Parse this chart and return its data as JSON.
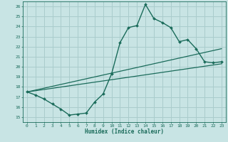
{
  "title": "",
  "xlabel": "Humidex (Indice chaleur)",
  "bg_color": "#c8e4e4",
  "grid_color": "#aacccc",
  "line_color": "#1a6b5a",
  "xlim": [
    -0.5,
    23.5
  ],
  "ylim": [
    14.5,
    26.5
  ],
  "xticks": [
    0,
    1,
    2,
    3,
    4,
    5,
    6,
    7,
    8,
    9,
    10,
    11,
    12,
    13,
    14,
    15,
    16,
    17,
    18,
    19,
    20,
    21,
    22,
    23
  ],
  "yticks": [
    15,
    16,
    17,
    18,
    19,
    20,
    21,
    22,
    23,
    24,
    25,
    26
  ],
  "line1_x": [
    0,
    1,
    2,
    3,
    4,
    5,
    6,
    7,
    8,
    9,
    10,
    11,
    12,
    13,
    14,
    15,
    16,
    17,
    18,
    19,
    20,
    21,
    22,
    23
  ],
  "line1_y": [
    17.5,
    17.2,
    16.8,
    16.3,
    15.8,
    15.2,
    15.3,
    15.4,
    16.5,
    17.3,
    19.3,
    22.4,
    23.9,
    24.1,
    26.2,
    24.8,
    24.4,
    23.9,
    22.5,
    22.7,
    21.8,
    20.5,
    20.4,
    20.5
  ],
  "line2_x": [
    0,
    23
  ],
  "line2_y": [
    17.5,
    21.8
  ],
  "line3_x": [
    0,
    23
  ],
  "line3_y": [
    17.5,
    20.3
  ]
}
